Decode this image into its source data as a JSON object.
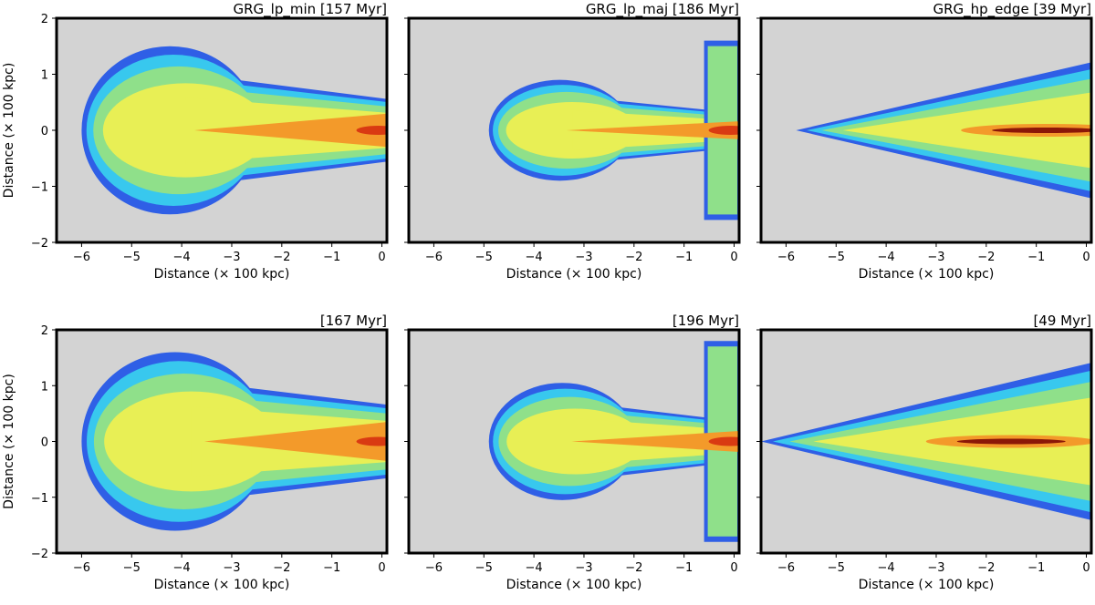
{
  "chart_data": [
    {
      "type": "heatmap",
      "title": "GRG_lp_min [157 Myr]",
      "xlabel": "Distance (× 100 kpc)",
      "ylabel": "Distance (× 100 kpc)",
      "xlim": [
        -6.5,
        0.1
      ],
      "ylim": [
        -2,
        2
      ],
      "xticks": [
        -6,
        -5,
        -4,
        -3,
        -2,
        -1,
        0
      ],
      "yticks": [
        -2,
        -1,
        0,
        1,
        2
      ],
      "morphology": "blob",
      "lobe": {
        "head": -6.0,
        "tail": -3.2,
        "half_width": 1.5
      },
      "jet_half_width": 0.55,
      "core_x": 0
    },
    {
      "type": "heatmap",
      "title": "GRG_lp_maj [186 Myr]",
      "xlabel": "Distance (× 100 kpc)",
      "ylabel": "",
      "xlim": [
        -6.5,
        0.1
      ],
      "ylim": [
        -2,
        2
      ],
      "xticks": [
        -6,
        -5,
        -4,
        -3,
        -2,
        -1,
        0
      ],
      "yticks": [
        -2,
        -1,
        0,
        1,
        2
      ],
      "morphology": "blob",
      "lobe": {
        "head": -4.9,
        "tail": -2.8,
        "half_width": 0.9
      },
      "jet_half_width": 0.3,
      "core_x": 0,
      "backflow": {
        "x_from": -0.6,
        "x_to": 0.1,
        "y_extent": 1.6
      }
    },
    {
      "type": "heatmap",
      "title": "GRG_hp_edge [39 Myr]",
      "xlabel": "Distance (× 100 kpc)",
      "ylabel": "",
      "xlim": [
        -6.5,
        0.1
      ],
      "ylim": [
        -2,
        2
      ],
      "xticks": [
        -6,
        -5,
        -4,
        -3,
        -2,
        -1,
        0
      ],
      "yticks": [
        -2,
        -1,
        0,
        1,
        2
      ],
      "morphology": "cone",
      "cone": {
        "tip": -5.8,
        "base_half_width": 1.25
      },
      "jet_half_width": 0.1,
      "core_x": -0.8
    },
    {
      "type": "heatmap",
      "title": "[167 Myr]",
      "xlabel": "Distance (× 100 kpc)",
      "ylabel": "Distance (× 100 kpc)",
      "xlim": [
        -6.5,
        0.1
      ],
      "ylim": [
        -2,
        2
      ],
      "xticks": [
        -6,
        -5,
        -4,
        -3,
        -2,
        -1,
        0
      ],
      "yticks": [
        -2,
        -1,
        0,
        1,
        2
      ],
      "morphology": "blob",
      "lobe": {
        "head": -6.0,
        "tail": -3.0,
        "half_width": 1.6
      },
      "jet_half_width": 0.65,
      "core_x": 0
    },
    {
      "type": "heatmap",
      "title": "[196 Myr]",
      "xlabel": "Distance (× 100 kpc)",
      "ylabel": "",
      "xlim": [
        -6.5,
        0.1
      ],
      "ylim": [
        -2,
        2
      ],
      "xticks": [
        -6,
        -5,
        -4,
        -3,
        -2,
        -1,
        0
      ],
      "yticks": [
        -2,
        -1,
        0,
        1,
        2
      ],
      "morphology": "blob",
      "lobe": {
        "head": -4.9,
        "tail": -2.7,
        "half_width": 1.05
      },
      "jet_half_width": 0.35,
      "core_x": 0,
      "backflow": {
        "x_from": -0.6,
        "x_to": 0.1,
        "y_extent": 1.8
      }
    },
    {
      "type": "heatmap",
      "title": "[49 Myr]",
      "xlabel": "Distance (× 100 kpc)",
      "ylabel": "",
      "xlim": [
        -6.5,
        0.1
      ],
      "ylim": [
        -2,
        2
      ],
      "xticks": [
        -6,
        -5,
        -4,
        -3,
        -2,
        -1,
        0
      ],
      "yticks": [
        -2,
        -1,
        0,
        1,
        2
      ],
      "morphology": "cone",
      "cone": {
        "tip": -6.5,
        "base_half_width": 1.45
      },
      "jet_half_width": 0.12,
      "core_x": -1.5
    }
  ],
  "colors": {
    "background": "#d3d3d3",
    "outer": "#2f5fe6",
    "cyan": "#38c8ee",
    "green": "#8fe08a",
    "yellow": "#e8ef55",
    "orange": "#f39a2a",
    "red": "#d93a12",
    "core": "#8b1708"
  }
}
